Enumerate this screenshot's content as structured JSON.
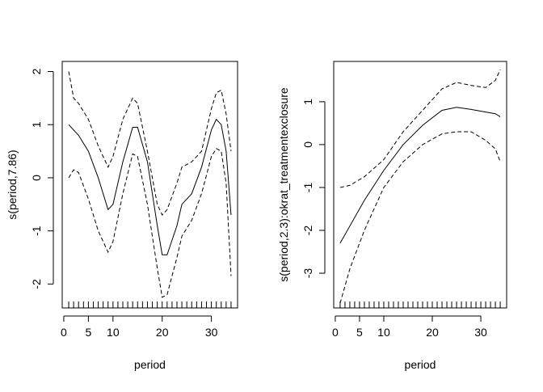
{
  "chart_data": [
    {
      "type": "line",
      "xlabel": "period",
      "ylabel": "s(period,7.86)",
      "x": [
        1,
        2,
        3,
        5,
        7,
        9,
        10,
        12,
        14,
        15,
        17,
        19,
        20,
        21,
        23,
        24,
        26,
        28,
        30,
        31,
        32,
        33,
        34
      ],
      "series": [
        {
          "color": "#000000",
          "dash": false,
          "values": [
            1.0,
            0.9,
            0.8,
            0.5,
            0.0,
            -0.6,
            -0.5,
            0.3,
            0.95,
            0.95,
            0.3,
            -0.9,
            -1.45,
            -1.45,
            -0.9,
            -0.5,
            -0.3,
            0.2,
            0.9,
            1.1,
            1.0,
            0.5,
            -0.7
          ]
        },
        {
          "color": "#000000",
          "dash": true,
          "values": [
            2.0,
            1.5,
            1.4,
            1.1,
            0.6,
            0.2,
            0.4,
            1.1,
            1.5,
            1.4,
            0.5,
            -0.5,
            -0.7,
            -0.6,
            -0.1,
            0.2,
            0.3,
            0.5,
            1.3,
            1.6,
            1.65,
            1.2,
            0.5
          ]
        },
        {
          "color": "#000000",
          "dash": true,
          "values": [
            0.0,
            0.15,
            0.1,
            -0.4,
            -1.0,
            -1.4,
            -1.2,
            -0.3,
            0.45,
            0.4,
            -0.5,
            -1.7,
            -2.25,
            -2.2,
            -1.5,
            -1.1,
            -0.8,
            -0.3,
            0.4,
            0.55,
            0.5,
            -0.1,
            -1.85
          ]
        }
      ],
      "rug": [
        1,
        2,
        3,
        4,
        5,
        6,
        7,
        8,
        9,
        10,
        11,
        12,
        13,
        14,
        15,
        16,
        17,
        18,
        19,
        20,
        21,
        22,
        23,
        24,
        25,
        26,
        27,
        28,
        29,
        30,
        31,
        32,
        33,
        34
      ],
      "xlim": [
        -0.32,
        35.32
      ],
      "xticks": [
        0,
        5,
        10,
        20,
        30
      ],
      "ylim": [
        -2.45,
        2.19
      ],
      "yticks": [
        -2,
        -1,
        0,
        1,
        2
      ]
    },
    {
      "type": "line",
      "xlabel": "period",
      "ylabel": "s(period,2.3):okrat_treatmentexclosure",
      "x": [
        1,
        3,
        6,
        10,
        14,
        18,
        22,
        25,
        28,
        31,
        33,
        34
      ],
      "series": [
        {
          "color": "#000000",
          "dash": false,
          "values": [
            -2.3,
            -1.9,
            -1.3,
            -0.6,
            0.0,
            0.45,
            0.8,
            0.87,
            0.82,
            0.76,
            0.72,
            0.65
          ]
        },
        {
          "color": "#000000",
          "dash": true,
          "values": [
            -1.0,
            -0.95,
            -0.75,
            -0.35,
            0.3,
            0.8,
            1.3,
            1.45,
            1.38,
            1.33,
            1.5,
            1.75
          ]
        },
        {
          "color": "#000000",
          "dash": true,
          "values": [
            -3.7,
            -2.9,
            -2.0,
            -1.0,
            -0.4,
            0.0,
            0.25,
            0.3,
            0.3,
            0.1,
            -0.1,
            -0.4
          ]
        }
      ],
      "rug": [
        1,
        2,
        3,
        4,
        5,
        6,
        7,
        8,
        9,
        10,
        11,
        12,
        13,
        14,
        15,
        16,
        17,
        18,
        19,
        20,
        21,
        22,
        23,
        24,
        25,
        26,
        27,
        28,
        29,
        30,
        31,
        32,
        33,
        34
      ],
      "xlim": [
        -0.32,
        35.32
      ],
      "xticks": [
        0,
        5,
        10,
        20,
        30
      ],
      "ylim": [
        -3.81,
        1.94
      ],
      "yticks": [
        -3,
        -2,
        -1,
        0,
        1
      ]
    }
  ]
}
